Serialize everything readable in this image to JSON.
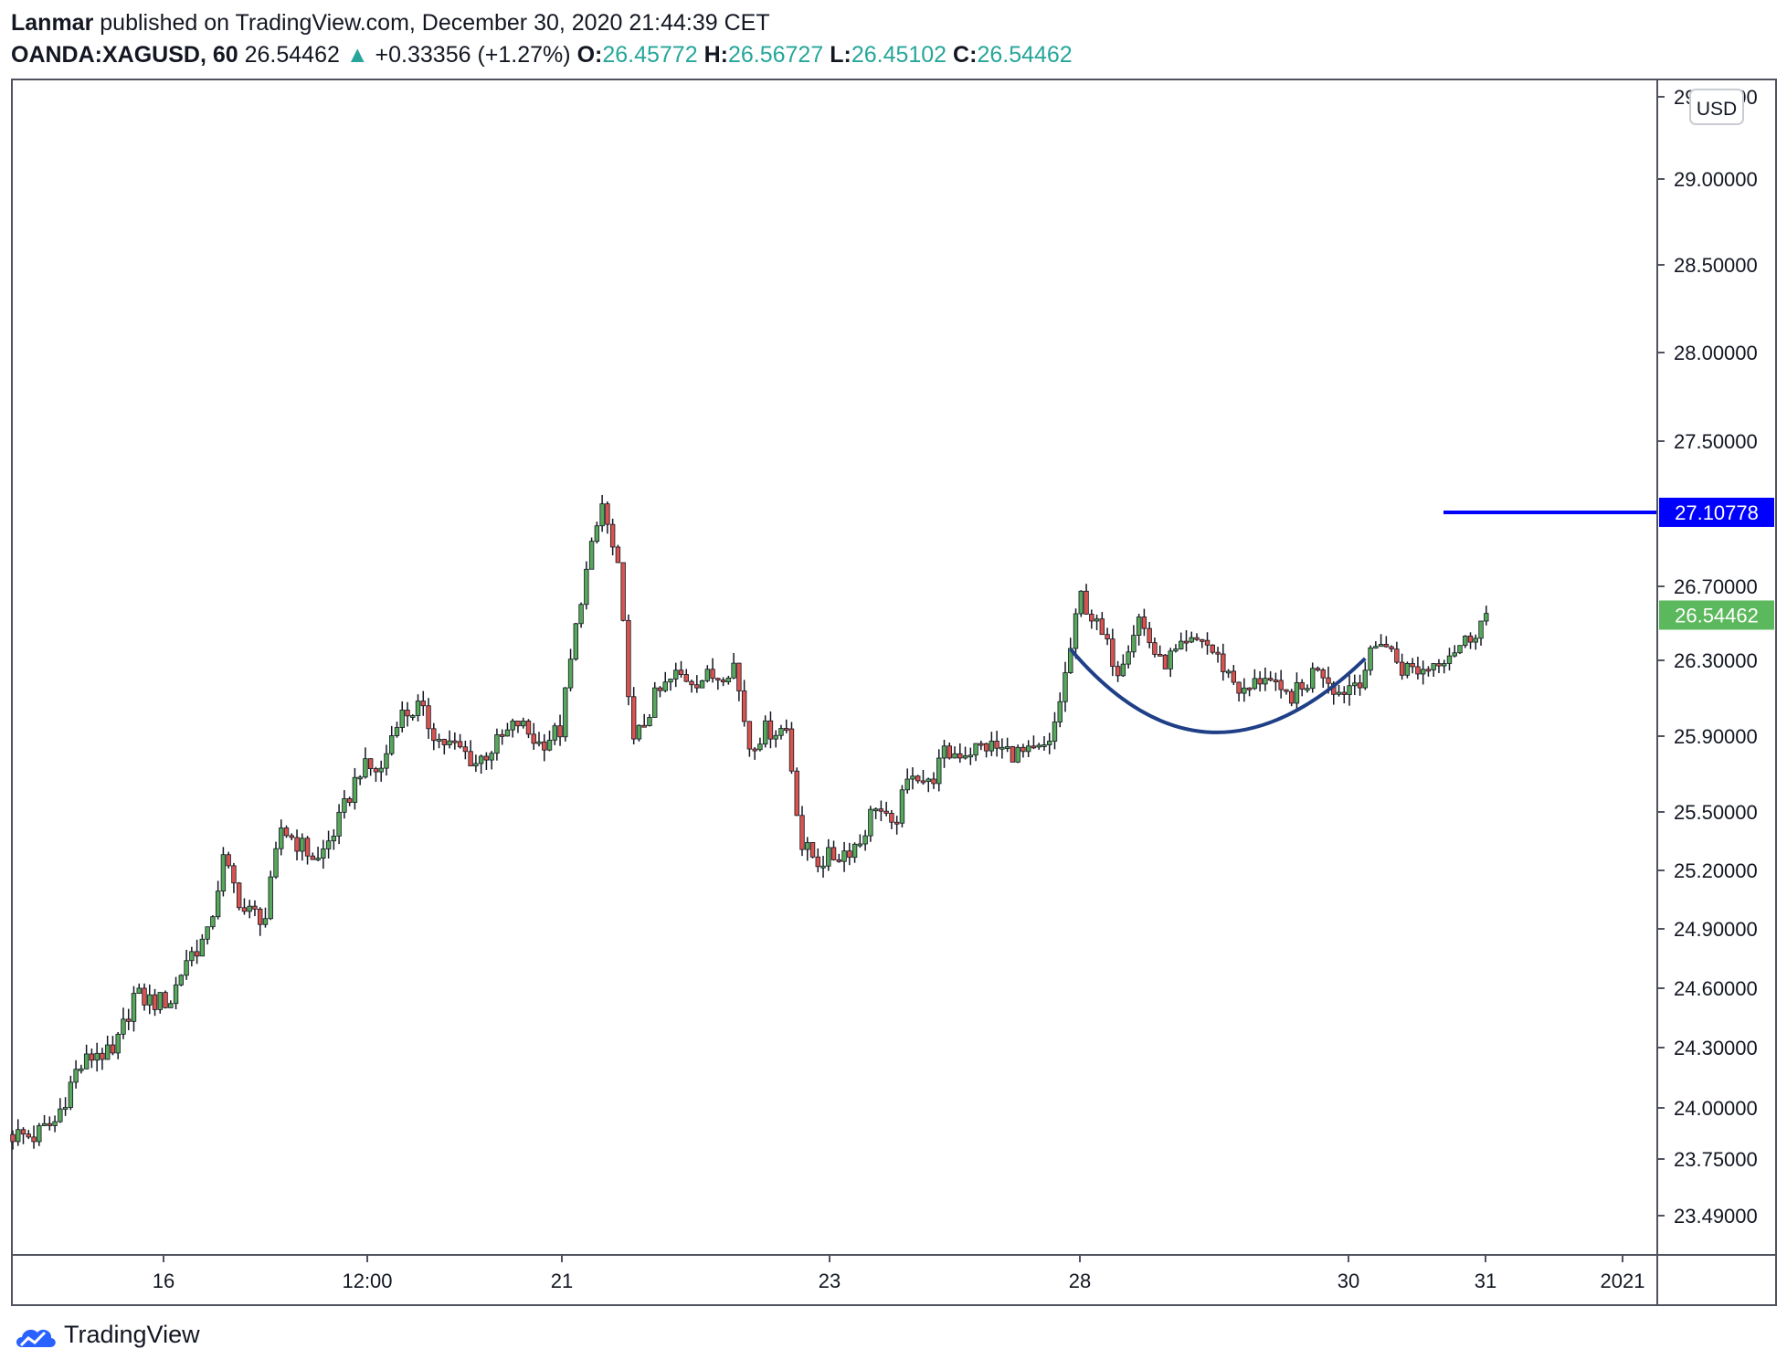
{
  "header": {
    "author": "Lanmar",
    "published": "published on TradingView.com, December 30, 2020 21:44:39 CET",
    "symbol": "OANDA:XAGUSD, 60",
    "last": "26.54462",
    "change_arrow": "▲",
    "change": "+0.33356 (+1.27%)",
    "o_label": "O:",
    "o": "26.45772",
    "h_label": "H:",
    "h": "26.56727",
    "l_label": "L:",
    "l": "26.45102",
    "c_label": "C:",
    "c": "26.54462"
  },
  "footer": {
    "brand": "TradingView",
    "logo_icon": "tradingview-cloud-icon"
  },
  "colors": {
    "up": "#26a69a",
    "candle_up": "#57a85a",
    "candle_down": "#d9534f",
    "level_line": "#0000ff",
    "arc": "#1f3f86",
    "price_tag": "#5cb85c"
  },
  "chart_data": {
    "type": "candlestick",
    "symbol": "OANDA:XAGUSD",
    "interval": "60",
    "currency": "USD",
    "y_ticks": [
      "29.50000",
      "29.00000",
      "28.50000",
      "28.00000",
      "27.50000",
      "26.70000",
      "26.30000",
      "25.90000",
      "25.50000",
      "25.20000",
      "24.90000",
      "24.60000",
      "24.30000",
      "24.00000",
      "23.75000",
      "23.49000"
    ],
    "x_ticks": [
      "16",
      "12:00",
      "21",
      "23",
      "28",
      "30",
      "31",
      "2021"
    ],
    "last_price": "26.54462",
    "horizontal_level": "27.10778",
    "path": [
      [
        0,
        23.87
      ],
      [
        4,
        23.86
      ],
      [
        8,
        23.93
      ],
      [
        12,
        24.18
      ],
      [
        16,
        24.28
      ],
      [
        19,
        24.25
      ],
      [
        23,
        24.56
      ],
      [
        27,
        24.53
      ],
      [
        30,
        24.54
      ],
      [
        33,
        24.75
      ],
      [
        37,
        24.86
      ],
      [
        40,
        25.25
      ],
      [
        44,
        24.99
      ],
      [
        48,
        24.96
      ],
      [
        51,
        25.42
      ],
      [
        55,
        25.32
      ],
      [
        58,
        25.25
      ],
      [
        62,
        25.45
      ],
      [
        66,
        25.73
      ],
      [
        70,
        25.72
      ],
      [
        73,
        26.0
      ],
      [
        77,
        26.05
      ],
      [
        81,
        25.88
      ],
      [
        85,
        25.83
      ],
      [
        88,
        25.76
      ],
      [
        92,
        25.86
      ],
      [
        96,
        25.97
      ],
      [
        100,
        25.86
      ],
      [
        104,
        25.93
      ],
      [
        108,
        26.65
      ],
      [
        112,
        27.15
      ],
      [
        115,
        26.78
      ],
      [
        118,
        25.85
      ],
      [
        122,
        26.1
      ],
      [
        126,
        26.22
      ],
      [
        130,
        26.2
      ],
      [
        134,
        26.22
      ],
      [
        137,
        26.28
      ],
      [
        140,
        25.85
      ],
      [
        143,
        25.93
      ],
      [
        147,
        25.94
      ],
      [
        150,
        25.32
      ],
      [
        153,
        25.25
      ],
      [
        157,
        25.28
      ],
      [
        161,
        25.35
      ],
      [
        164,
        25.55
      ],
      [
        167,
        25.4
      ],
      [
        171,
        25.73
      ],
      [
        174,
        25.64
      ],
      [
        177,
        25.8
      ],
      [
        181,
        25.82
      ],
      [
        185,
        25.85
      ],
      [
        189,
        25.82
      ],
      [
        193,
        25.8
      ],
      [
        197,
        25.84
      ],
      [
        200,
        26.22
      ],
      [
        203,
        26.65
      ],
      [
        206,
        26.48
      ],
      [
        210,
        26.26
      ],
      [
        214,
        26.53
      ],
      [
        218,
        26.28
      ],
      [
        222,
        26.35
      ],
      [
        226,
        26.42
      ],
      [
        230,
        26.27
      ],
      [
        234,
        26.12
      ],
      [
        238,
        26.23
      ],
      [
        241,
        26.1
      ],
      [
        245,
        26.14
      ],
      [
        248,
        26.28
      ],
      [
        252,
        26.13
      ],
      [
        256,
        26.21
      ],
      [
        260,
        26.42
      ],
      [
        264,
        26.26
      ],
      [
        268,
        26.25
      ],
      [
        272,
        26.33
      ],
      [
        276,
        26.4
      ],
      [
        280,
        26.54
      ]
    ],
    "curve": [
      [
        201,
        26.36
      ],
      [
        227,
        25.92
      ],
      [
        257,
        26.31
      ]
    ],
    "annotations": [
      "horizontal line at 27.10778",
      "rounded-bottom arc drawn under price action from Dec 28 to Dec 30"
    ]
  }
}
